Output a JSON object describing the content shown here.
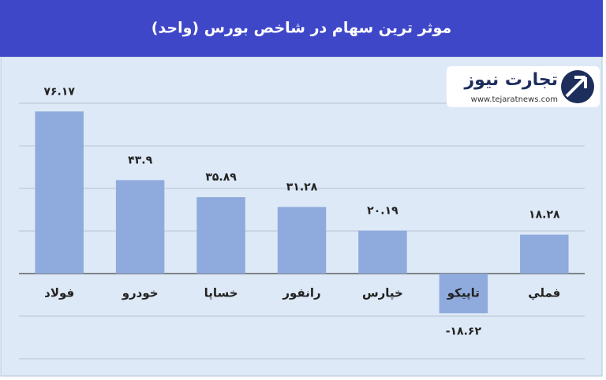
{
  "logo": {
    "name": "تجارت نیوز",
    "url": "www.tejaratnews.com"
  },
  "chart_data": {
    "type": "bar",
    "title": "موثر ترین سهام در شاخص بورس (واحد)",
    "categories": [
      "فولاد",
      "خودرو",
      "خساپا",
      "رانفور",
      "خپارس",
      "تاپیکو",
      "فملي"
    ],
    "values": [
      76.17,
      43.9,
      35.89,
      31.28,
      20.19,
      -18.62,
      18.28
    ],
    "value_labels": [
      "۷۶.۱۷",
      "۴۳.۹",
      "۳۵.۸۹",
      "۳۱.۲۸",
      "۲۰.۱۹",
      "-۱۸.۶۲",
      "۱۸.۲۸"
    ],
    "color": "#8faadc",
    "ylim": [
      -40,
      100
    ],
    "yticks": [
      -40,
      -20,
      0,
      20,
      40,
      60,
      80
    ],
    "grid": true
  }
}
